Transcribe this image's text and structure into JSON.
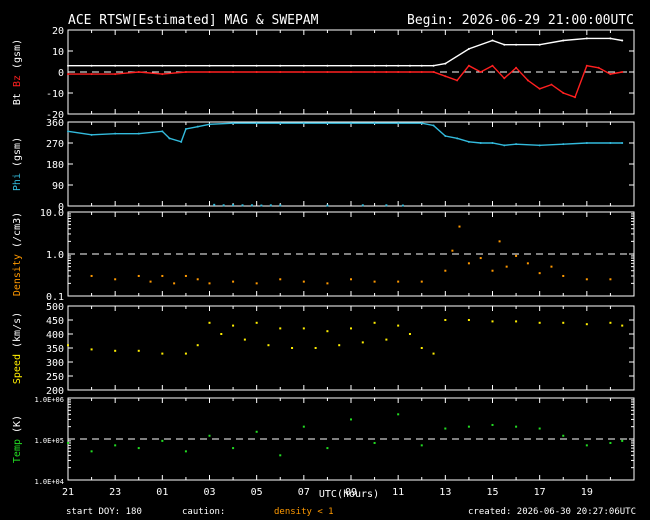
{
  "header": {
    "title": "ACE RTSW[Estimated] MAG & SWEPAM",
    "begin": "Begin: 2026-06-29 21:00:00UTC"
  },
  "footer": {
    "start_doy": "start DOY: 180",
    "caution": "caution:",
    "density_note": "density < 1",
    "created": "created: 2026-06-30 20:27:06UTC"
  },
  "colors": {
    "bt": "#ffffff",
    "bz": "#ff2020",
    "phi": "#33bbdd",
    "density": "#ff9900",
    "speed": "#ffee00",
    "temp": "#22dd22",
    "axis": "#ffffff",
    "dash": "#ffffff"
  },
  "chart_data": {
    "type": "scatter",
    "xlabel": "UTC(hours)",
    "x_range_hours": [
      0,
      24
    ],
    "x_tick_labels": [
      "21",
      "23",
      "01",
      "03",
      "05",
      "07",
      "09",
      "11",
      "13",
      "15",
      "17",
      "19"
    ],
    "panels": [
      {
        "id": "mag",
        "ylabel_parts": [
          {
            "text": "Bt",
            "color": "#ffffff"
          },
          {
            "text": " Bz",
            "color": "#ff2020"
          },
          {
            "text": " (gsm)",
            "color": "#ffffff"
          }
        ],
        "ylim": [
          -20,
          20
        ],
        "scale": "linear",
        "y_ticks": [
          -20,
          -10,
          0,
          10,
          20
        ],
        "y_tick_labels": [
          "-20",
          "-10",
          "0",
          "10",
          "20"
        ],
        "dashed_at": 0,
        "series": [
          {
            "key": "bt",
            "color": "#ffffff",
            "style": "line",
            "x": [
              0,
              1,
              2,
              3,
              4,
              5,
              6,
              7,
              8,
              9,
              10,
              11,
              12,
              13,
              13.5,
              14,
              14.5,
              15,
              15.5,
              16,
              17,
              18,
              18.5,
              19,
              20,
              21,
              22,
              23,
              23.5
            ],
            "y": [
              3,
              3,
              3,
              3,
              3,
              3,
              3,
              3,
              3,
              3,
              3,
              3,
              3,
              3,
              3,
              3,
              3,
              3,
              3,
              4,
              11,
              15,
              13,
              13,
              13,
              15,
              16,
              16,
              15
            ]
          },
          {
            "key": "bz",
            "color": "#ff2020",
            "style": "line",
            "x": [
              0,
              1,
              2,
              3,
              4,
              5,
              6,
              7,
              8,
              9,
              10,
              11,
              12,
              13,
              13.5,
              14,
              14.5,
              15,
              15.5,
              16,
              16.5,
              17,
              17.5,
              18,
              18.5,
              19,
              19.5,
              20,
              20.5,
              21,
              21.5,
              22,
              22.5,
              23,
              23.5
            ],
            "y": [
              -1,
              -1,
              -1,
              0,
              -1,
              0,
              0,
              0,
              0,
              0,
              0,
              0,
              0,
              0,
              0,
              0,
              0,
              0,
              0,
              -2,
              -4,
              3,
              0,
              3,
              -3,
              2,
              -4,
              -8,
              -6,
              -10,
              -12,
              3,
              2,
              -1,
              0
            ]
          }
        ]
      },
      {
        "id": "phi",
        "ylabel_parts": [
          {
            "text": "Phi",
            "color": "#33bbdd"
          },
          {
            "text": " (gsm)",
            "color": "#ffffff"
          }
        ],
        "ylim": [
          0,
          360
        ],
        "scale": "linear",
        "y_ticks": [
          0,
          90,
          180,
          270,
          360
        ],
        "y_tick_labels": [
          "0",
          "90",
          "180",
          "270",
          "360"
        ],
        "series": [
          {
            "key": "phi",
            "color": "#33bbdd",
            "style": "line",
            "x": [
              0,
              1,
              2,
              3,
              4,
              4.3,
              4.8,
              5,
              5.5,
              6,
              7,
              8,
              9,
              10,
              11,
              12,
              13,
              14,
              15,
              15.5,
              16,
              16.5,
              17,
              17.5,
              18,
              18.5,
              19,
              20,
              21,
              22,
              23,
              23.5
            ],
            "y": [
              320,
              305,
              310,
              310,
              320,
              290,
              275,
              330,
              340,
              350,
              355,
              355,
              355,
              355,
              355,
              355,
              355,
              355,
              355,
              345,
              300,
              290,
              275,
              270,
              270,
              260,
              265,
              260,
              265,
              270,
              270,
              270
            ]
          },
          {
            "key": "phi_low",
            "color": "#33bbdd",
            "style": "dots",
            "x": [
              6.2,
              6.6,
              7,
              7.4,
              7.8,
              8.2,
              8.6,
              9,
              11,
              12.5,
              13.5,
              14.2
            ],
            "y": [
              5,
              3,
              4,
              3,
              3,
              2,
              3,
              3,
              2,
              3,
              3,
              2
            ]
          }
        ]
      },
      {
        "id": "density",
        "ylabel_parts": [
          {
            "text": "Density",
            "color": "#ff9900"
          },
          {
            "text": " (/cm3)",
            "color": "#ffffff"
          }
        ],
        "ylim": [
          0.1,
          10
        ],
        "scale": "log",
        "y_ticks": [
          0.1,
          1,
          10
        ],
        "y_tick_labels": [
          "0.1",
          "1.0",
          "10.0"
        ],
        "dashed_at": 1,
        "series": [
          {
            "key": "density",
            "color": "#ff9900",
            "style": "dots",
            "x": [
              1,
              2,
              3,
              3.5,
              4,
              4.5,
              5,
              5.5,
              6,
              7,
              8,
              9,
              10,
              11,
              12,
              13,
              14,
              15,
              16,
              16.3,
              16.6,
              17,
              17.5,
              18,
              18.3,
              18.6,
              19,
              19.5,
              20,
              20.5,
              21,
              22,
              23
            ],
            "y": [
              0.3,
              0.25,
              0.3,
              0.22,
              0.3,
              0.2,
              0.3,
              0.25,
              0.2,
              0.22,
              0.2,
              0.25,
              0.22,
              0.2,
              0.25,
              0.22,
              0.22,
              0.22,
              0.4,
              1.2,
              4.5,
              0.6,
              0.8,
              0.4,
              2.0,
              0.5,
              0.9,
              0.6,
              0.35,
              0.5,
              0.3,
              0.25,
              0.25
            ]
          }
        ]
      },
      {
        "id": "speed",
        "ylabel_parts": [
          {
            "text": "Speed",
            "color": "#ffee00"
          },
          {
            "text": " (km/s)",
            "color": "#ffffff"
          }
        ],
        "ylim": [
          200,
          500
        ],
        "scale": "linear",
        "y_ticks": [
          200,
          250,
          300,
          350,
          400,
          450,
          500
        ],
        "y_tick_labels": [
          "200",
          "250",
          "300",
          "350",
          "400",
          "450",
          "500"
        ],
        "series": [
          {
            "key": "speed",
            "color": "#ffee00",
            "style": "dots",
            "x": [
              0,
              1,
              2,
              3,
              4,
              5,
              5.5,
              6,
              6.5,
              7,
              7.5,
              8,
              8.5,
              9,
              9.5,
              10,
              10.5,
              11,
              11.5,
              12,
              12.5,
              13,
              13.5,
              14,
              14.5,
              15,
              15.5,
              16,
              17,
              18,
              19,
              20,
              21,
              22,
              23,
              23.5
            ],
            "y": [
              360,
              345,
              340,
              340,
              330,
              330,
              360,
              440,
              400,
              430,
              380,
              440,
              360,
              420,
              350,
              420,
              350,
              410,
              360,
              420,
              370,
              440,
              380,
              430,
              400,
              350,
              330,
              450,
              450,
              445,
              445,
              440,
              440,
              435,
              440,
              430
            ]
          }
        ]
      },
      {
        "id": "temp",
        "ylabel_parts": [
          {
            "text": "Temp",
            "color": "#22dd22"
          },
          {
            "text": " (K)",
            "color": "#ffffff"
          }
        ],
        "ylim": [
          10000,
          1000000
        ],
        "scale": "log",
        "y_ticks": [
          10000,
          100000,
          1000000
        ],
        "y_tick_labels": [
          "1.0E+04",
          "1.0E+05",
          "1.0E+06"
        ],
        "dashed_at": 100000,
        "series": [
          {
            "key": "temp",
            "color": "#22dd22",
            "style": "dots",
            "x": [
              0,
              1,
              2,
              3,
              4,
              5,
              6,
              7,
              8,
              9,
              10,
              11,
              12,
              13,
              14,
              15,
              16,
              17,
              18,
              19,
              20,
              21,
              22,
              23,
              23.5
            ],
            "y": [
              80000,
              50000,
              70000,
              60000,
              90000,
              50000,
              120000,
              60000,
              150000,
              40000,
              200000,
              60000,
              300000,
              80000,
              400000,
              70000,
              180000,
              200000,
              220000,
              200000,
              180000,
              120000,
              70000,
              80000,
              90000
            ]
          }
        ]
      }
    ]
  }
}
